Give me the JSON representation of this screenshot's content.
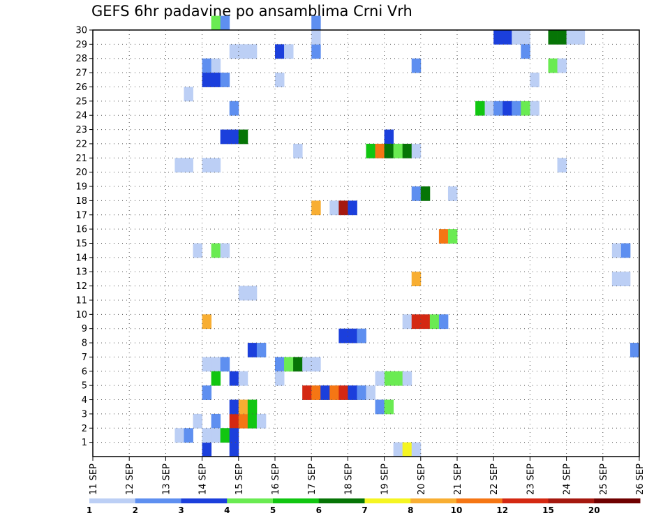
{
  "chart_data": {
    "type": "heatmap",
    "title": "GEFS 6hr padavine po ansamblima Crni Vrh",
    "x_ticks": [
      "11 SEP",
      "12 SEP",
      "13 SEP",
      "14 SEP",
      "15 SEP",
      "16 SEP",
      "17 SEP",
      "18 SEP",
      "19 SEP",
      "20 SEP",
      "21 SEP",
      "22 SEP",
      "23 SEP",
      "24 SEP",
      "25 SEP",
      "26 SEP"
    ],
    "x_range": [
      0,
      60
    ],
    "y_range": [
      0,
      30
    ],
    "y_ticks": [
      1,
      2,
      3,
      4,
      5,
      6,
      7,
      8,
      9,
      10,
      11,
      12,
      13,
      14,
      15,
      16,
      17,
      18,
      19,
      20,
      21,
      22,
      23,
      24,
      25,
      26,
      27,
      28,
      29,
      30
    ],
    "grid": true,
    "legend": {
      "placement": "bottom",
      "colors": [
        "#bccff5",
        "#5e8ff0",
        "#1b3fdc",
        "#6aeb52",
        "#11c611",
        "#067506",
        "#f5f522",
        "#f8ae32",
        "#f57614",
        "#d42812",
        "#a5180f",
        "#6f0000"
      ],
      "labels": [
        "1",
        "2",
        "3",
        "4",
        "5",
        "6",
        "7",
        "8",
        "10",
        "12",
        "15",
        "20"
      ]
    },
    "cells": [
      [
        13,
        2,
        "#5e8ff0"
      ],
      [
        13,
        1,
        "#5e8ff0"
      ],
      [
        13,
        1,
        "#bccff5"
      ],
      [
        14,
        1,
        "#bccff5"
      ],
      [
        12,
        0,
        "#1b3fdc"
      ],
      [
        12,
        1,
        "#bccff5"
      ],
      [
        12,
        1,
        "#bccff5"
      ],
      [
        24,
        28,
        "#5e8ff0"
      ],
      [
        24,
        29,
        "#bccff5"
      ],
      [
        24,
        30,
        "#5e8ff0"
      ],
      [
        44,
        29,
        "#1b3fdc"
      ],
      [
        45,
        29,
        "#1b3fdc"
      ],
      [
        46,
        29,
        "#bccff5"
      ],
      [
        47,
        29,
        "#bccff5"
      ],
      [
        13,
        30,
        "#6aeb52"
      ],
      [
        14,
        30,
        "#5e8ff0"
      ],
      [
        15,
        28,
        "#bccff5"
      ],
      [
        16,
        28,
        "#bccff5"
      ],
      [
        17,
        28,
        "#bccff5"
      ],
      [
        20,
        28,
        "#1b3fdc"
      ],
      [
        21,
        28,
        "#bccff5"
      ],
      [
        12,
        27,
        "#5e8ff0"
      ],
      [
        13,
        27,
        "#bccff5"
      ],
      [
        12,
        26,
        "#1b3fdc"
      ],
      [
        13,
        26,
        "#1b3fdc"
      ],
      [
        14,
        26,
        "#5e8ff0"
      ],
      [
        20,
        26,
        "#bccff5"
      ],
      [
        10,
        25,
        "#bccff5"
      ],
      [
        15,
        24,
        "#5e8ff0"
      ],
      [
        43,
        24,
        "#bccff5"
      ],
      [
        44,
        24,
        "#5e8ff0"
      ],
      [
        45,
        24,
        "#1b3fdc"
      ],
      [
        46,
        24,
        "#5e8ff0"
      ],
      [
        47,
        24,
        "#6aeb52"
      ],
      [
        48,
        24,
        "#bccff5"
      ],
      [
        42,
        24,
        "#11c611"
      ],
      [
        15,
        22,
        "#1b3fdc"
      ],
      [
        16,
        22,
        "#067506"
      ],
      [
        14,
        22,
        "#1b3fdc"
      ],
      [
        32,
        22,
        "#1b3fdc"
      ],
      [
        22,
        21,
        "#bccff5"
      ],
      [
        30,
        21,
        "#11c611"
      ],
      [
        31,
        21,
        "#f57614"
      ],
      [
        32,
        21,
        "#067506"
      ],
      [
        33,
        21,
        "#6aeb52"
      ],
      [
        34,
        21,
        "#067506"
      ],
      [
        35,
        21,
        "#bccff5"
      ],
      [
        9,
        20,
        "#bccff5"
      ],
      [
        10,
        20,
        "#bccff5"
      ],
      [
        12,
        20,
        "#bccff5"
      ],
      [
        13,
        20,
        "#bccff5"
      ],
      [
        51,
        20,
        "#bccff5"
      ],
      [
        47,
        28,
        "#5e8ff0"
      ],
      [
        50,
        29,
        "#067506"
      ],
      [
        51,
        29,
        "#067506"
      ],
      [
        52,
        29,
        "#bccff5"
      ],
      [
        53,
        29,
        "#bccff5"
      ],
      [
        50,
        27,
        "#6aeb52"
      ],
      [
        51,
        27,
        "#bccff5"
      ],
      [
        48,
        26,
        "#bccff5"
      ],
      [
        35,
        27,
        "#5e8ff0"
      ],
      [
        35,
        18,
        "#5e8ff0"
      ],
      [
        36,
        18,
        "#067506"
      ],
      [
        39,
        18,
        "#bccff5"
      ],
      [
        24,
        17,
        "#f8ae32"
      ],
      [
        26,
        17,
        "#bccff5"
      ],
      [
        27,
        17,
        "#a5180f"
      ],
      [
        28,
        17,
        "#1b3fdc"
      ],
      [
        38,
        15,
        "#f57614"
      ],
      [
        39,
        15,
        "#6aeb52"
      ],
      [
        11,
        14,
        "#bccff5"
      ],
      [
        13,
        14,
        "#6aeb52"
      ],
      [
        14,
        14,
        "#bccff5"
      ],
      [
        57,
        14,
        "#bccff5"
      ],
      [
        58,
        14,
        "#5e8ff0"
      ],
      [
        35,
        12,
        "#f8ae32"
      ],
      [
        57,
        12,
        "#bccff5"
      ],
      [
        58,
        12,
        "#bccff5"
      ],
      [
        16,
        11,
        "#bccff5"
      ],
      [
        17,
        11,
        "#bccff5"
      ],
      [
        12,
        9,
        "#f8ae32"
      ],
      [
        34,
        9,
        "#bccff5"
      ],
      [
        35,
        9,
        "#d42812"
      ],
      [
        36,
        9,
        "#d42812"
      ],
      [
        37,
        9,
        "#6aeb52"
      ],
      [
        38,
        9,
        "#5e8ff0"
      ],
      [
        27,
        8,
        "#1b3fdc"
      ],
      [
        28,
        8,
        "#1b3fdc"
      ],
      [
        29,
        8,
        "#5e8ff0"
      ],
      [
        17,
        7,
        "#1b3fdc"
      ],
      [
        18,
        7,
        "#5e8ff0"
      ],
      [
        59,
        7,
        "#5e8ff0"
      ],
      [
        13,
        6,
        "#bccff5"
      ],
      [
        14,
        6,
        "#5e8ff0"
      ],
      [
        20,
        6,
        "#5e8ff0"
      ],
      [
        21,
        6,
        "#6aeb52"
      ],
      [
        22,
        6,
        "#067506"
      ],
      [
        23,
        6,
        "#bccff5"
      ],
      [
        24,
        6,
        "#bccff5"
      ],
      [
        12,
        6,
        "#bccff5"
      ],
      [
        13,
        5,
        "#11c611"
      ],
      [
        15,
        5,
        "#1b3fdc"
      ],
      [
        16,
        5,
        "#bccff5"
      ],
      [
        20,
        5,
        "#bccff5"
      ],
      [
        33,
        5,
        "#6aeb52"
      ],
      [
        34,
        5,
        "#bccff5"
      ],
      [
        32,
        5,
        "#6aeb52"
      ],
      [
        31,
        5,
        "#bccff5"
      ],
      [
        12,
        4,
        "#5e8ff0"
      ],
      [
        23,
        4,
        "#d42812"
      ],
      [
        24,
        4,
        "#f57614"
      ],
      [
        25,
        4,
        "#1b3fdc"
      ],
      [
        26,
        4,
        "#f57614"
      ],
      [
        27,
        4,
        "#d42812"
      ],
      [
        28,
        4,
        "#1b3fdc"
      ],
      [
        29,
        4,
        "#5e8ff0"
      ],
      [
        30,
        4,
        "#bccff5"
      ],
      [
        31,
        3,
        "#5e8ff0"
      ],
      [
        32,
        3,
        "#6aeb52"
      ],
      [
        11,
        2,
        "#bccff5"
      ],
      [
        15,
        2,
        "#d42812"
      ],
      [
        16,
        2,
        "#f57614"
      ],
      [
        17,
        2,
        "#11c611"
      ],
      [
        18,
        2,
        "#bccff5"
      ],
      [
        9,
        1,
        "#bccff5"
      ],
      [
        10,
        1,
        "#5e8ff0"
      ],
      [
        14,
        1,
        "#11c611"
      ],
      [
        15,
        1,
        "#1b3fdc"
      ],
      [
        15,
        0,
        "#1b3fdc"
      ],
      [
        33,
        0,
        "#bccff5"
      ],
      [
        34,
        0,
        "#f5f522"
      ],
      [
        35,
        0,
        "#bccff5"
      ],
      [
        15,
        3,
        "#1b3fdc"
      ],
      [
        16,
        3,
        "#f8ae32"
      ],
      [
        17,
        3,
        "#11c611"
      ]
    ]
  }
}
